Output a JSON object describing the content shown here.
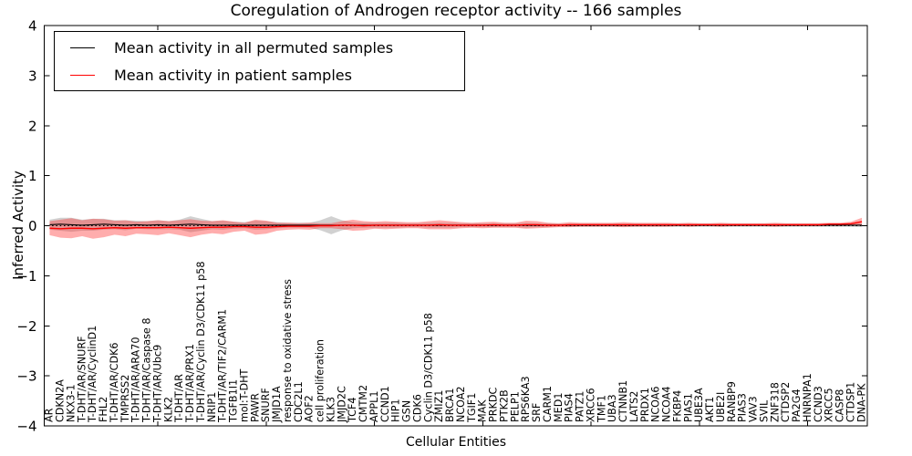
{
  "title": "Coregulation of Androgen receptor activity -- 166 samples",
  "chart_data": {
    "type": "line",
    "title": "Coregulation of Androgen receptor activity -- 166 samples",
    "xlabel": "Cellular Entities",
    "ylabel": "Inferred Activity",
    "ylim": [
      -4,
      4
    ],
    "ytick_labels": [
      "4",
      "3",
      "2",
      "1",
      "0",
      "−1",
      "−2",
      "−3",
      "−4"
    ],
    "ytick_values": [
      4,
      3,
      2,
      1,
      0,
      -1,
      -2,
      -3,
      -4
    ],
    "xticks_major": [
      10,
      20,
      30,
      40,
      50,
      60,
      70
    ],
    "grid": false,
    "legend_position": "upper left",
    "zero_line_style": "dotted",
    "sample_count": 166,
    "categories": [
      "AR",
      "CDKN2A",
      "NKX3-1",
      "T-DHT/AR/SNURF",
      "T-DHT/AR/CyclinD1",
      "FHL2",
      "T-DHT/AR/CDK6",
      "TMPRSS2",
      "T-DHT/AR/ARA70",
      "T-DHT/AR/Caspase 8",
      "T-DHT/AR/Ubc9",
      "KLK2",
      "T-DHT/AR",
      "T-DHT/AR/PRX1",
      "T-DHT/AR/Cyclin D3/CDK11 p58",
      "NRIP1",
      "T-DHT/AR/TIF2/CARM1",
      "TGFB1I1",
      "mol:T-DHT",
      "PAWR",
      "SNURF",
      "JMJD1A",
      "response to oxidative stress",
      "CDC2L1",
      "AOF2",
      "cell proliferation",
      "KLK3",
      "JMJD2C",
      "TCF4",
      "CMTM2",
      "APPL1",
      "CCND1",
      "HIP1",
      "GSN",
      "CDK6",
      "Cyclin D3/CDK11 p58",
      "ZMIZ1",
      "BRCA1",
      "NCOA2",
      "TGIF1",
      "MAK",
      "PRKDC",
      "PTK2B",
      "PELP1",
      "RPS6KA3",
      "SRF",
      "CARM1",
      "MED1",
      "PIAS4",
      "PATZ1",
      "XRCC6",
      "TMF1",
      "UBA3",
      "CTNNB1",
      "LATS2",
      "PRDX1",
      "NCOA6",
      "NCOA4",
      "FKBP4",
      "PIAS1",
      "UBE3A",
      "AKT1",
      "UBE2I",
      "RANBP9",
      "PIAS3",
      "VAV3",
      "SVIL",
      "ZNF318",
      "CTDSP2",
      "PA2G4",
      "HNRNPA1",
      "CCND3",
      "XRCC5",
      "CASP8",
      "CTDSP1",
      "DNA-PK"
    ],
    "series": [
      {
        "name": "Mean activity in all permuted samples",
        "color": "#000000",
        "band_color": "#999999",
        "band_opacity": 0.45,
        "mean": [
          0.02,
          0.03,
          0.02,
          0.01,
          0.02,
          0.03,
          0.02,
          0.01,
          0.02,
          0.01,
          0.02,
          0.01,
          0.02,
          0.03,
          0.02,
          0.01,
          0.01,
          0.01,
          0.01,
          0.01,
          0.01,
          0.01,
          0.01,
          0.01,
          0.01,
          0.01,
          0.01,
          0.01,
          0.01,
          0.01,
          0.01,
          0.01,
          0.01,
          0.01,
          0.01,
          0.01,
          0.01,
          0.01,
          0.01,
          0.01,
          0.01,
          0.01,
          0.01,
          0.01,
          0.01,
          0.01,
          0.01,
          0.01,
          0.01,
          0.01,
          0.01,
          0.01,
          0.01,
          0.01,
          0.01,
          0.01,
          0.01,
          0.01,
          0.01,
          0.01,
          0.01,
          0.01,
          0.01,
          0.01,
          0.01,
          0.01,
          0.01,
          0.01,
          0.01,
          0.01,
          0.01,
          0.01,
          0.01,
          0.01,
          0.01,
          0.01
        ],
        "std": [
          0.1,
          0.13,
          0.14,
          0.11,
          0.12,
          0.11,
          0.09,
          0.1,
          0.08,
          0.08,
          0.09,
          0.08,
          0.1,
          0.16,
          0.12,
          0.08,
          0.09,
          0.07,
          0.06,
          0.09,
          0.08,
          0.06,
          0.05,
          0.05,
          0.05,
          0.1,
          0.18,
          0.1,
          0.06,
          0.05,
          0.05,
          0.05,
          0.05,
          0.04,
          0.04,
          0.05,
          0.05,
          0.05,
          0.04,
          0.04,
          0.04,
          0.04,
          0.04,
          0.04,
          0.05,
          0.04,
          0.04,
          0.03,
          0.03,
          0.03,
          0.03,
          0.03,
          0.03,
          0.03,
          0.03,
          0.03,
          0.03,
          0.03,
          0.03,
          0.03,
          0.03,
          0.03,
          0.03,
          0.03,
          0.03,
          0.03,
          0.03,
          0.03,
          0.03,
          0.03,
          0.03,
          0.03,
          0.03,
          0.03,
          0.03,
          0.04
        ]
      },
      {
        "name": "Mean activity in patient samples",
        "color": "#ff0000",
        "band_color": "#ff3333",
        "band_opacity": 0.4,
        "mean": [
          -0.05,
          -0.06,
          -0.05,
          -0.05,
          -0.06,
          -0.05,
          -0.04,
          -0.05,
          -0.04,
          -0.04,
          -0.04,
          -0.03,
          -0.04,
          -0.05,
          -0.04,
          -0.03,
          -0.03,
          -0.02,
          -0.02,
          -0.03,
          -0.03,
          -0.02,
          -0.01,
          -0.01,
          -0.01,
          0,
          0,
          0.01,
          0.01,
          0,
          0.01,
          0.01,
          0.01,
          0.01,
          0.01,
          0.01,
          0.02,
          0.01,
          0.01,
          0.01,
          0.01,
          0.02,
          0.01,
          0.01,
          0.02,
          0.02,
          0.01,
          0.01,
          0.02,
          0.02,
          0.02,
          0.02,
          0.02,
          0.02,
          0.02,
          0.02,
          0.02,
          0.02,
          0.02,
          0.02,
          0.02,
          0.02,
          0.02,
          0.02,
          0.02,
          0.02,
          0.02,
          0.02,
          0.02,
          0.02,
          0.02,
          0.02,
          0.03,
          0.03,
          0.04,
          0.08
        ],
        "std": [
          0.14,
          0.18,
          0.2,
          0.16,
          0.2,
          0.18,
          0.14,
          0.16,
          0.12,
          0.13,
          0.15,
          0.12,
          0.15,
          0.18,
          0.14,
          0.12,
          0.14,
          0.1,
          0.08,
          0.15,
          0.13,
          0.08,
          0.07,
          0.06,
          0.07,
          0.05,
          0.05,
          0.08,
          0.11,
          0.09,
          0.07,
          0.08,
          0.07,
          0.06,
          0.06,
          0.08,
          0.09,
          0.08,
          0.06,
          0.05,
          0.06,
          0.06,
          0.05,
          0.05,
          0.08,
          0.07,
          0.05,
          0.04,
          0.05,
          0.04,
          0.04,
          0.04,
          0.04,
          0.05,
          0.04,
          0.04,
          0.04,
          0.04,
          0.03,
          0.04,
          0.03,
          0.03,
          0.04,
          0.03,
          0.03,
          0.03,
          0.03,
          0.04,
          0.03,
          0.03,
          0.03,
          0.03,
          0.03,
          0.03,
          0.04,
          0.08
        ]
      }
    ]
  },
  "legend": {
    "entries": [
      {
        "label": "Mean activity in all permuted samples",
        "color": "#000000"
      },
      {
        "label": "Mean activity in patient samples",
        "color": "#ff0000"
      }
    ]
  }
}
